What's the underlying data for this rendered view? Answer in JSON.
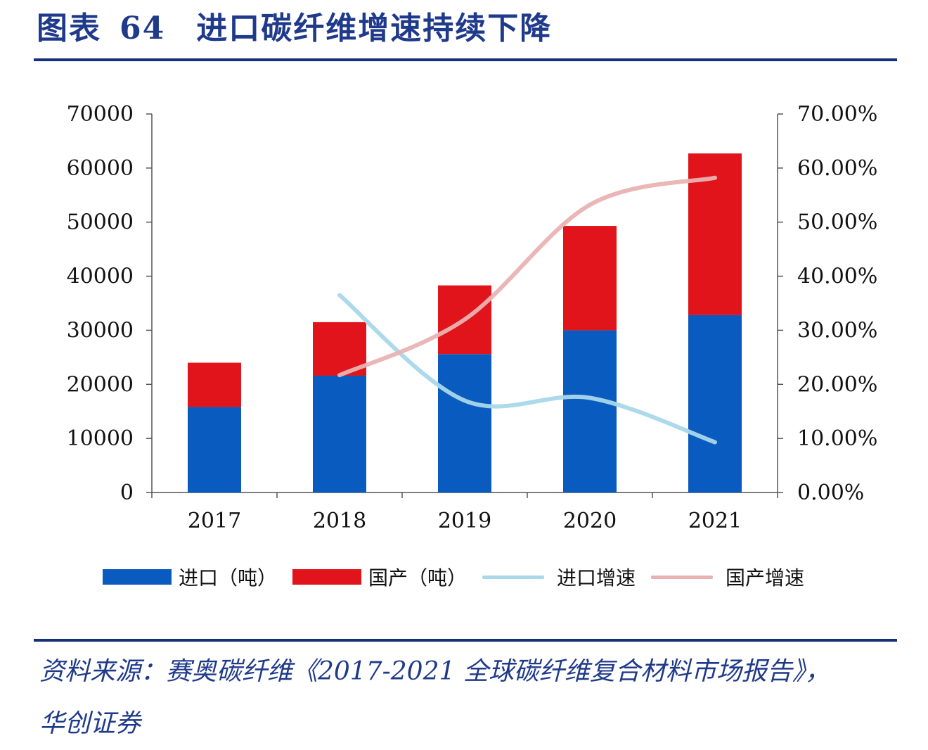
{
  "header": {
    "figure_label": "图表",
    "figure_number": "64",
    "title": "进口碳纤维增速持续下降"
  },
  "chart_data": {
    "type": "bar",
    "stacked": true,
    "categories": [
      "2017",
      "2018",
      "2019",
      "2020",
      "2021"
    ],
    "series": [
      {
        "name": "进口（吨）",
        "kind": "bar",
        "axis": "left",
        "color": "#0a5bbf",
        "values": [
          15800,
          21600,
          25600,
          30000,
          32800
        ]
      },
      {
        "name": "国产（吨）",
        "kind": "bar",
        "axis": "left",
        "color": "#e0141a",
        "values": [
          8200,
          9900,
          12700,
          19300,
          29900
        ]
      },
      {
        "name": "进口增速",
        "kind": "line",
        "axis": "right",
        "color": "#a9d8ea",
        "values": [
          null,
          36.5,
          17.0,
          17.5,
          9.3
        ]
      },
      {
        "name": "国产增速",
        "kind": "line",
        "axis": "right",
        "color": "#e9b2b2",
        "values": [
          null,
          21.7,
          32.0,
          53.2,
          58.2
        ]
      }
    ],
    "y_left": {
      "min": 0,
      "max": 70000,
      "ticks": [
        "0",
        "10000",
        "20000",
        "30000",
        "40000",
        "50000",
        "60000",
        "70000"
      ]
    },
    "y_right": {
      "min": 0,
      "max": 70,
      "unit": "%",
      "ticks": [
        "0.00%",
        "10.00%",
        "20.00%",
        "30.00%",
        "40.00%",
        "50.00%",
        "60.00%",
        "70.00%"
      ]
    },
    "grid": false,
    "legend_position": "bottom"
  },
  "legend": [
    {
      "label": "进口（吨）",
      "style": "bar",
      "color": "#0a5bbf"
    },
    {
      "label": "国产（吨）",
      "style": "bar",
      "color": "#e0141a"
    },
    {
      "label": "进口增速",
      "style": "line",
      "color": "#a9d8ea"
    },
    {
      "label": "国产增速",
      "style": "line",
      "color": "#e9b2b2"
    }
  ],
  "footer": {
    "source_line1": "资料来源：赛奥碳纤维《2017-2021 全球碳纤维复合材料市场报告》，",
    "source_line2": "华创证券"
  }
}
